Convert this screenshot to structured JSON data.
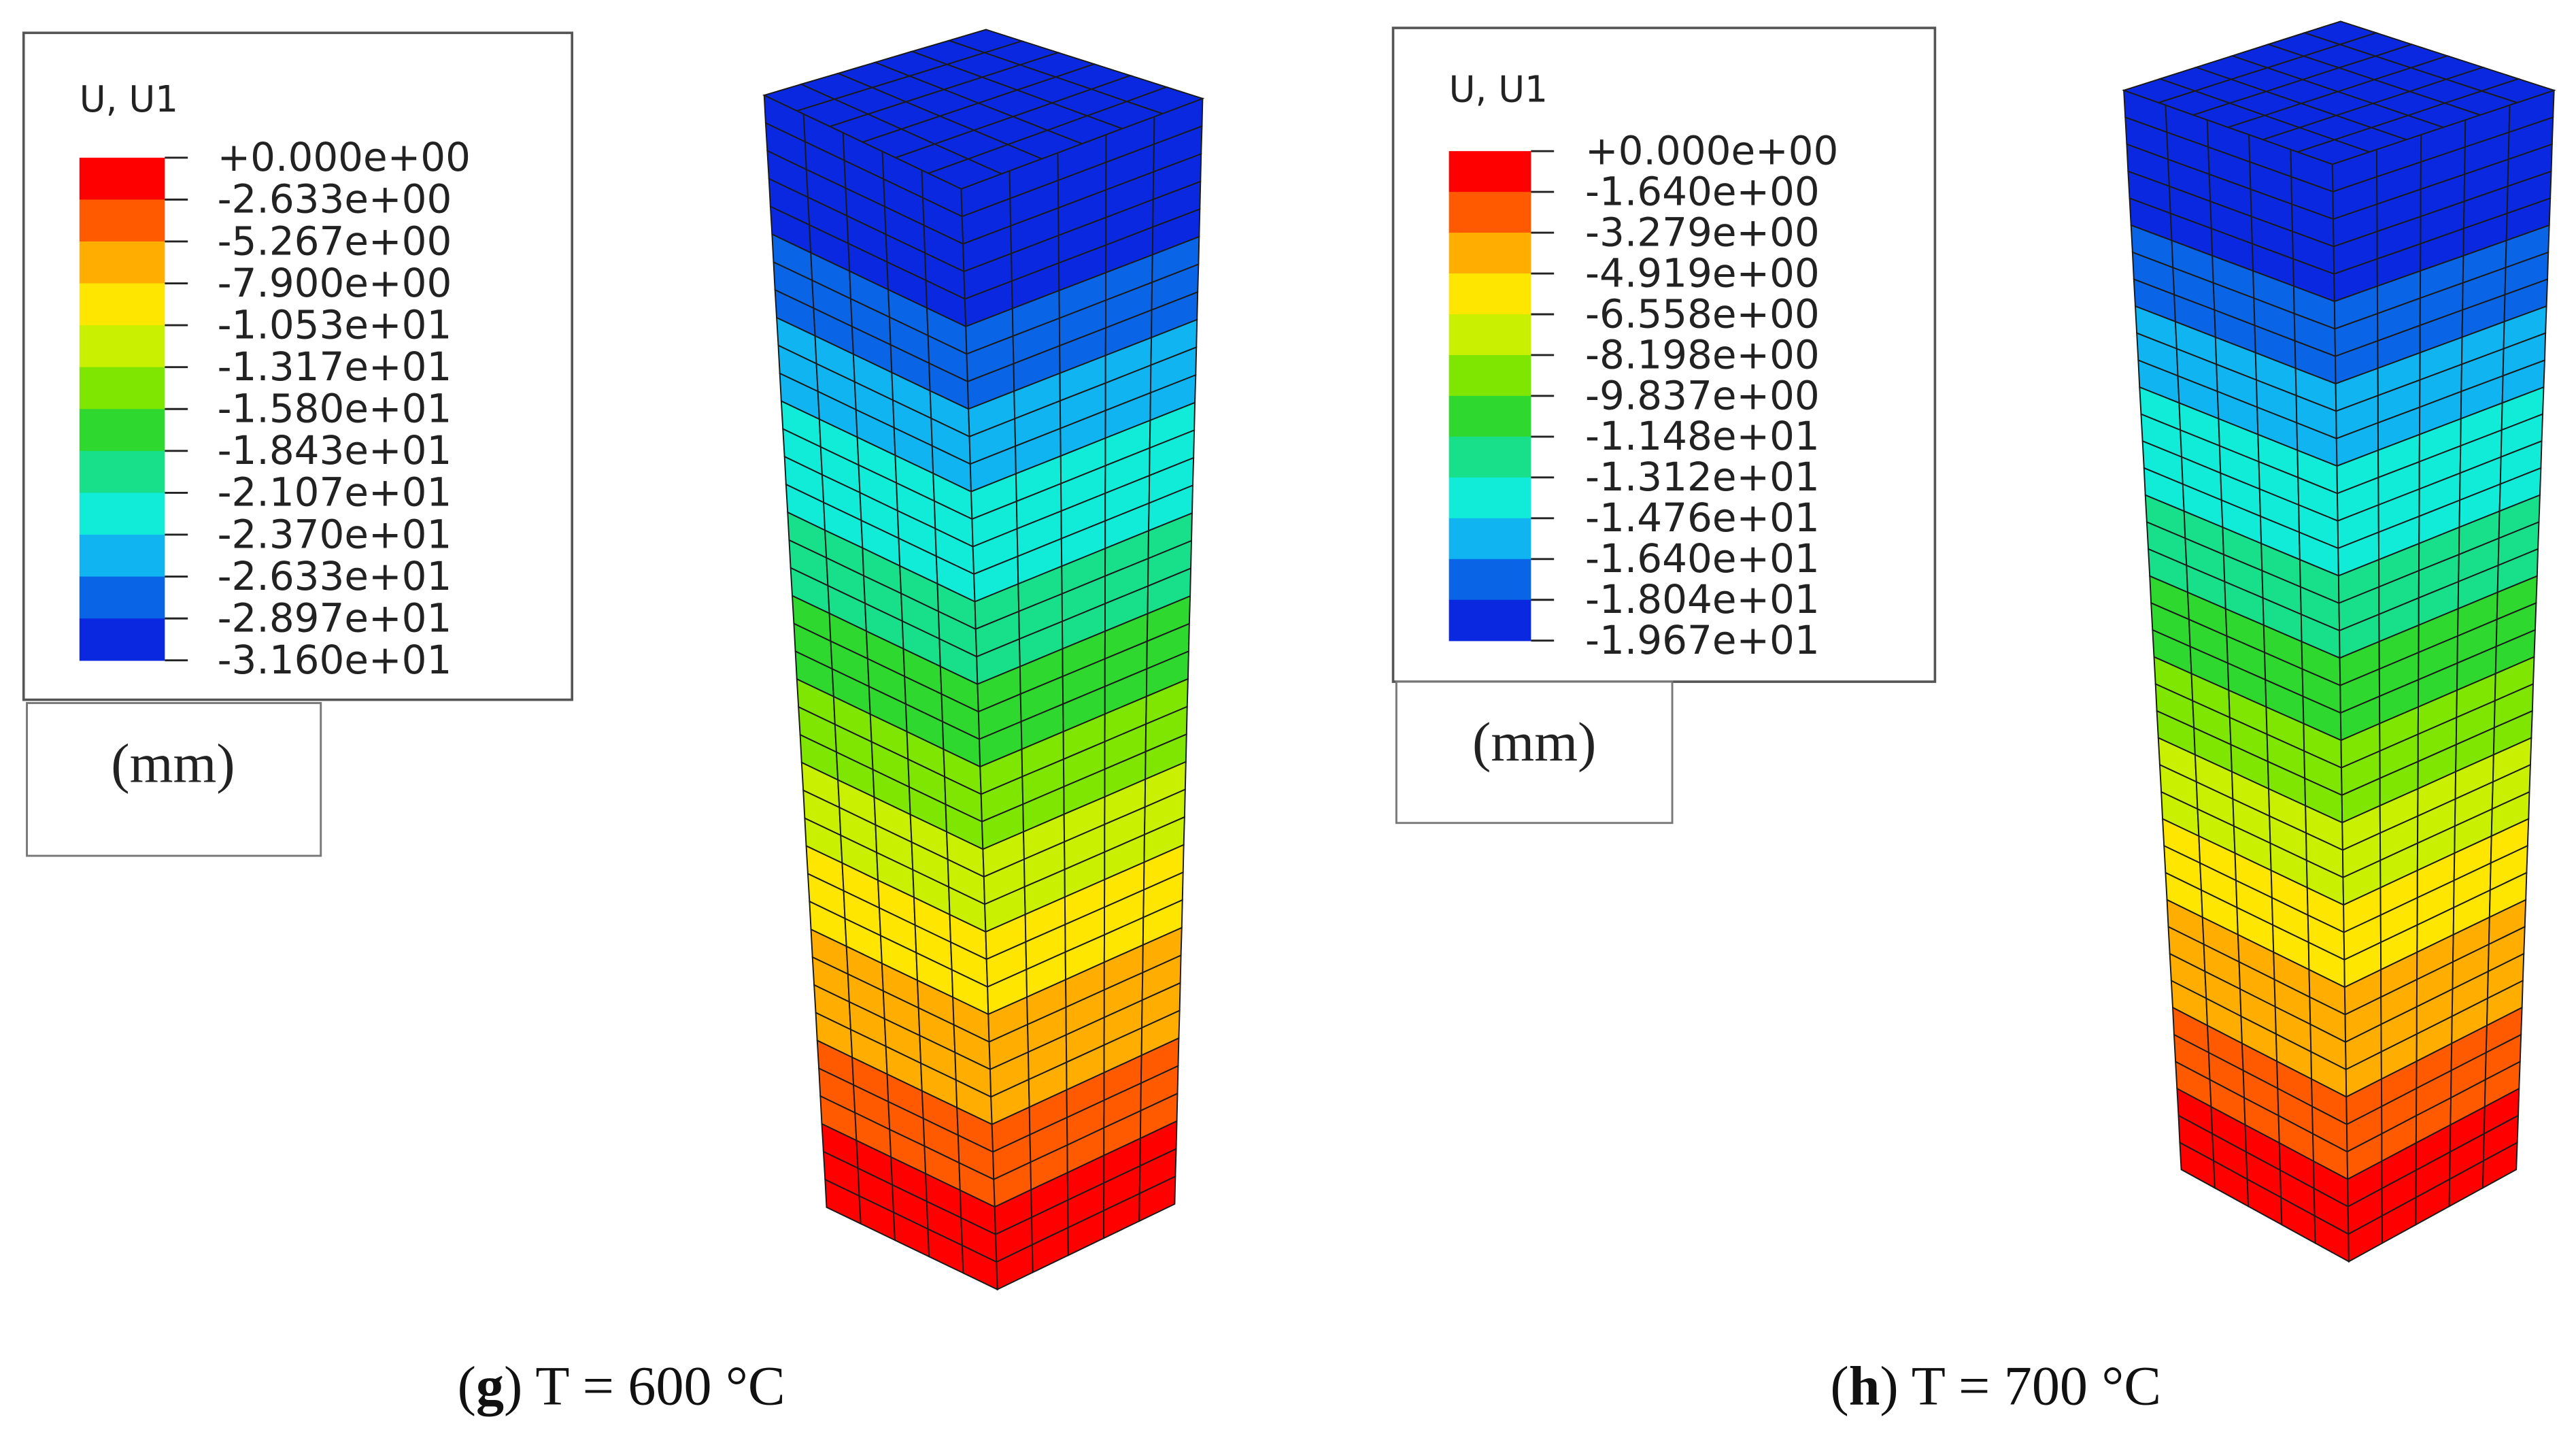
{
  "panels": [
    {
      "legend_title": "U, U1",
      "levels": [
        "+0.000e+00",
        "-2.633e+00",
        "-5.267e+00",
        "-7.900e+00",
        "-1.053e+01",
        "-1.317e+01",
        "-1.580e+01",
        "-1.843e+01",
        "-2.107e+01",
        "-2.370e+01",
        "-2.633e+01",
        "-2.897e+01",
        "-3.160e+01"
      ],
      "unit": "(mm)",
      "caption": [
        "(",
        "g",
        ") T = 600 °C"
      ]
    },
    {
      "legend_title": "U, U1",
      "levels": [
        "+0.000e+00",
        "-1.640e+00",
        "-3.279e+00",
        "-4.919e+00",
        "-6.558e+00",
        "-8.198e+00",
        "-9.837e+00",
        "-1.148e+01",
        "-1.312e+01",
        "-1.476e+01",
        "-1.640e+01",
        "-1.804e+01",
        "-1.967e+01"
      ],
      "unit": "(mm)",
      "caption": [
        "(",
        "h",
        ") T = 700 °C"
      ]
    }
  ],
  "band_colors": [
    "#ff0000",
    "#ff5a00",
    "#ffae00",
    "#ffe600",
    "#c8f000",
    "#7ee600",
    "#2ed82e",
    "#18e08a",
    "#10ecd8",
    "#10b4f0",
    "#0a64e6",
    "#0a28e0"
  ]
}
